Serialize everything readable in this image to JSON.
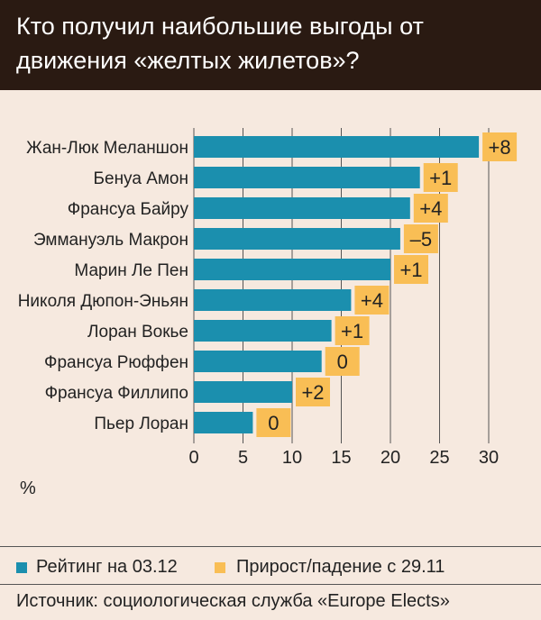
{
  "title": "Кто получил наибольшие выгоды от движения «желтых жилетов»?",
  "colors": {
    "rating": "#1b8fae",
    "change": "#f9be55",
    "header": "#2a1a12",
    "background": "#f6e9df"
  },
  "chart_data": {
    "type": "bar",
    "orientation": "horizontal",
    "categories": [
      "Жан-Люк Меланшон",
      "Бенуа Амон",
      "Франсуа Байру",
      "Эммануэль Макрон",
      "Марин Ле Пен",
      "Николя Дюпон-Эньян",
      "Лоран Вокье",
      "Франсуа Рюффен",
      "Франсуа Филлипо",
      "Пьер Лоран"
    ],
    "series": [
      {
        "name": "Рейтинг на 03.12",
        "values": [
          29,
          23,
          22,
          21,
          20,
          16,
          14,
          13,
          10,
          6
        ]
      },
      {
        "name": "Прирост/падение с 29.11",
        "values": [
          "+8",
          "+1",
          "+4",
          "–5",
          "+1",
          "+4",
          "+1",
          "0",
          "+2",
          "0"
        ]
      }
    ],
    "xlim": [
      0,
      30
    ],
    "xticks": [
      "0",
      "5",
      "10",
      "15",
      "20",
      "25",
      "30"
    ],
    "unit": "%"
  },
  "legend": {
    "rating": "Рейтинг на 03.12",
    "change": "Прирост/падение с 29.11"
  },
  "source": "Источник: социологическая служба «Europe Elects»"
}
